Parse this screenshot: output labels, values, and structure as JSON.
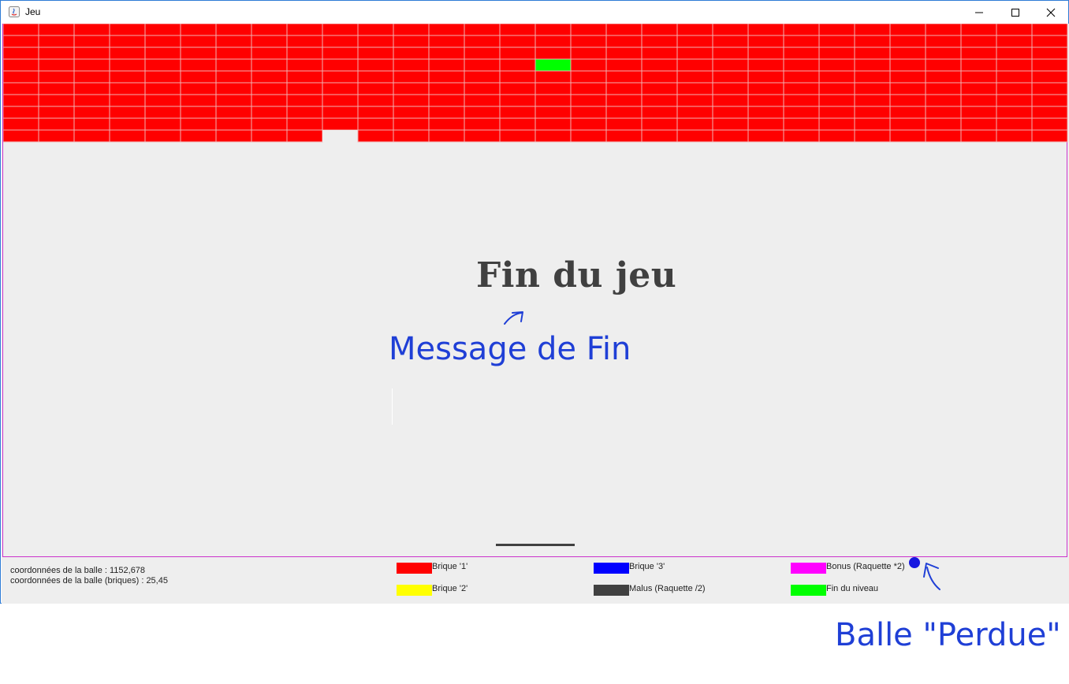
{
  "window": {
    "title": "Jeu"
  },
  "colors": {
    "brick1": "#ff0000",
    "brick2": "#ffff00",
    "brick3": "#0000ff",
    "bonus": "#ff00ff",
    "malus": "#404040",
    "level_end": "#00ff00",
    "background": "#eeeeee",
    "annotation": "#1f3fd6",
    "ball": "#1818e0"
  },
  "bricks": {
    "columns": 30,
    "rows": 10,
    "default_type": "brique-1",
    "special": [
      {
        "row": 3,
        "col": 15,
        "type": "fin-du-niveau"
      },
      {
        "row": 9,
        "col": 9,
        "type": "destroyed"
      }
    ]
  },
  "game": {
    "end_message": "Fin du jeu"
  },
  "status": {
    "coord_ball": "coordonnées de la balle : 1152,678",
    "coord_ball_bricks": "coordonnées de la balle (briques) : 25,45"
  },
  "legend": [
    {
      "label": "Brique '1'",
      "color": "#ff0000"
    },
    {
      "label": "Brique '2'",
      "color": "#ffff00"
    },
    {
      "label": "Brique '3'",
      "color": "#0000ff"
    },
    {
      "label": "Malus (Raquette /2)",
      "color": "#404040"
    },
    {
      "label": "Bonus (Raquette *2)",
      "color": "#ff00ff"
    },
    {
      "label": "Fin du niveau",
      "color": "#00ff00"
    }
  ],
  "annotations": {
    "message_de_fin": "Message de Fin",
    "balle_perdue": "Balle \"Perdue\""
  }
}
